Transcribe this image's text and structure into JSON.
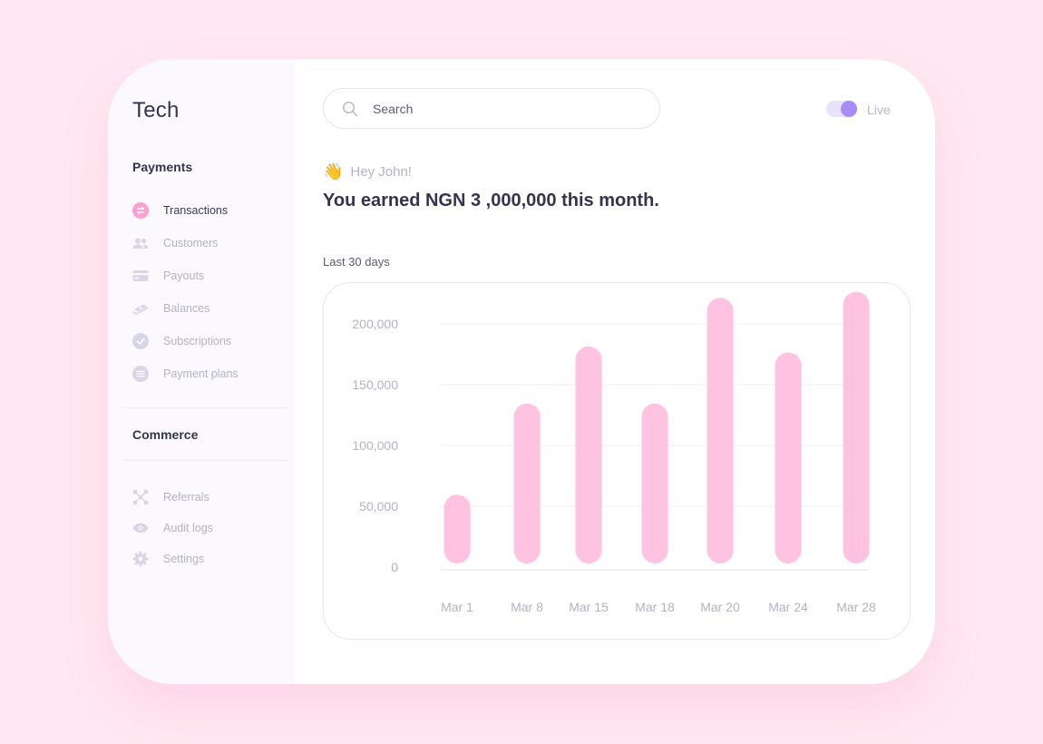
{
  "sidebar": {
    "brand": "Tech",
    "payments_title": "Payments",
    "payments_items": [
      {
        "label": "Transactions",
        "icon": "swap-circle-icon",
        "active": true
      },
      {
        "label": "Customers",
        "icon": "users-icon"
      },
      {
        "label": "Payouts",
        "icon": "card-icon"
      },
      {
        "label": "Balances",
        "icon": "money-icon"
      },
      {
        "label": "Subscriptions",
        "icon": "check-circle-icon"
      },
      {
        "label": "Payment plans",
        "icon": "list-circle-icon"
      }
    ],
    "commerce_title": "Commerce",
    "commerce_items": [
      {
        "label": "Referrals",
        "icon": "network-icon"
      },
      {
        "label": "Audit logs",
        "icon": "eye-icon"
      },
      {
        "label": "Settings",
        "icon": "gear-icon"
      }
    ]
  },
  "header": {
    "search_placeholder": "Search",
    "live_label": "Live",
    "live_on": true
  },
  "main": {
    "greeting": "Hey John!",
    "earned": "You earned NGN 3 ,000,000 this month.",
    "period": "Last 30 days"
  },
  "colors": {
    "bar": "#ffc2e1",
    "accent": "#a98bf5",
    "active_icon": "#ff9fcf",
    "muted_icon": "#d8d6e6"
  },
  "chart_data": {
    "type": "bar",
    "categories": [
      "Mar 1",
      "Mar 8",
      "Mar 15",
      "Mar 18",
      "Mar 20",
      "Mar 24",
      "Mar 28"
    ],
    "values": [
      55000,
      130000,
      177000,
      130000,
      217000,
      172000,
      222000
    ],
    "yticks": [
      "200,000",
      "150,000",
      "100,000",
      "50,000",
      "0"
    ],
    "ytick_values": [
      200000,
      150000,
      100000,
      50000,
      0
    ],
    "ylim": [
      0,
      200000
    ],
    "grid": true
  }
}
